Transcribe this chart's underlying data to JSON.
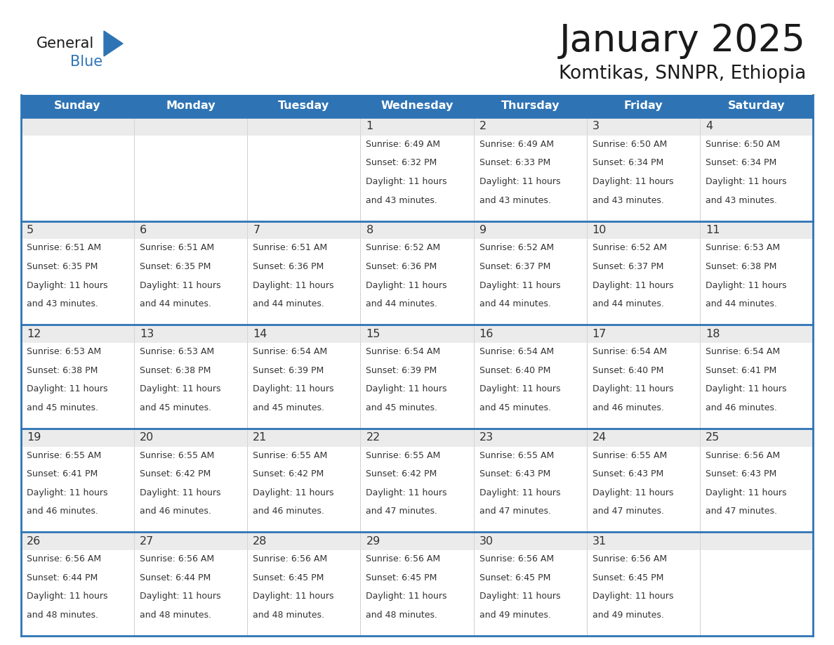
{
  "title": "January 2025",
  "subtitle": "Komtikas, SNNPR, Ethiopia",
  "days_of_week": [
    "Sunday",
    "Monday",
    "Tuesday",
    "Wednesday",
    "Thursday",
    "Friday",
    "Saturday"
  ],
  "header_bg": "#2E74B5",
  "header_text": "#FFFFFF",
  "cell_bg": "#FFFFFF",
  "cell_header_bg": "#EBEBEB",
  "border_color": "#2E74B5",
  "day_num_color": "#333333",
  "cell_text_color": "#333333",
  "title_color": "#1a1a1a",
  "logo_general_color": "#1a1a1a",
  "logo_blue_color": "#2E74B5",
  "calendar_data": [
    [
      null,
      null,
      null,
      {
        "day": 1,
        "sunrise": "6:49 AM",
        "sunset": "6:32 PM",
        "daylight_hours": 11,
        "daylight_minutes": 43
      },
      {
        "day": 2,
        "sunrise": "6:49 AM",
        "sunset": "6:33 PM",
        "daylight_hours": 11,
        "daylight_minutes": 43
      },
      {
        "day": 3,
        "sunrise": "6:50 AM",
        "sunset": "6:34 PM",
        "daylight_hours": 11,
        "daylight_minutes": 43
      },
      {
        "day": 4,
        "sunrise": "6:50 AM",
        "sunset": "6:34 PM",
        "daylight_hours": 11,
        "daylight_minutes": 43
      }
    ],
    [
      {
        "day": 5,
        "sunrise": "6:51 AM",
        "sunset": "6:35 PM",
        "daylight_hours": 11,
        "daylight_minutes": 43
      },
      {
        "day": 6,
        "sunrise": "6:51 AM",
        "sunset": "6:35 PM",
        "daylight_hours": 11,
        "daylight_minutes": 44
      },
      {
        "day": 7,
        "sunrise": "6:51 AM",
        "sunset": "6:36 PM",
        "daylight_hours": 11,
        "daylight_minutes": 44
      },
      {
        "day": 8,
        "sunrise": "6:52 AM",
        "sunset": "6:36 PM",
        "daylight_hours": 11,
        "daylight_minutes": 44
      },
      {
        "day": 9,
        "sunrise": "6:52 AM",
        "sunset": "6:37 PM",
        "daylight_hours": 11,
        "daylight_minutes": 44
      },
      {
        "day": 10,
        "sunrise": "6:52 AM",
        "sunset": "6:37 PM",
        "daylight_hours": 11,
        "daylight_minutes": 44
      },
      {
        "day": 11,
        "sunrise": "6:53 AM",
        "sunset": "6:38 PM",
        "daylight_hours": 11,
        "daylight_minutes": 44
      }
    ],
    [
      {
        "day": 12,
        "sunrise": "6:53 AM",
        "sunset": "6:38 PM",
        "daylight_hours": 11,
        "daylight_minutes": 45
      },
      {
        "day": 13,
        "sunrise": "6:53 AM",
        "sunset": "6:38 PM",
        "daylight_hours": 11,
        "daylight_minutes": 45
      },
      {
        "day": 14,
        "sunrise": "6:54 AM",
        "sunset": "6:39 PM",
        "daylight_hours": 11,
        "daylight_minutes": 45
      },
      {
        "day": 15,
        "sunrise": "6:54 AM",
        "sunset": "6:39 PM",
        "daylight_hours": 11,
        "daylight_minutes": 45
      },
      {
        "day": 16,
        "sunrise": "6:54 AM",
        "sunset": "6:40 PM",
        "daylight_hours": 11,
        "daylight_minutes": 45
      },
      {
        "day": 17,
        "sunrise": "6:54 AM",
        "sunset": "6:40 PM",
        "daylight_hours": 11,
        "daylight_minutes": 46
      },
      {
        "day": 18,
        "sunrise": "6:54 AM",
        "sunset": "6:41 PM",
        "daylight_hours": 11,
        "daylight_minutes": 46
      }
    ],
    [
      {
        "day": 19,
        "sunrise": "6:55 AM",
        "sunset": "6:41 PM",
        "daylight_hours": 11,
        "daylight_minutes": 46
      },
      {
        "day": 20,
        "sunrise": "6:55 AM",
        "sunset": "6:42 PM",
        "daylight_hours": 11,
        "daylight_minutes": 46
      },
      {
        "day": 21,
        "sunrise": "6:55 AM",
        "sunset": "6:42 PM",
        "daylight_hours": 11,
        "daylight_minutes": 46
      },
      {
        "day": 22,
        "sunrise": "6:55 AM",
        "sunset": "6:42 PM",
        "daylight_hours": 11,
        "daylight_minutes": 47
      },
      {
        "day": 23,
        "sunrise": "6:55 AM",
        "sunset": "6:43 PM",
        "daylight_hours": 11,
        "daylight_minutes": 47
      },
      {
        "day": 24,
        "sunrise": "6:55 AM",
        "sunset": "6:43 PM",
        "daylight_hours": 11,
        "daylight_minutes": 47
      },
      {
        "day": 25,
        "sunrise": "6:56 AM",
        "sunset": "6:43 PM",
        "daylight_hours": 11,
        "daylight_minutes": 47
      }
    ],
    [
      {
        "day": 26,
        "sunrise": "6:56 AM",
        "sunset": "6:44 PM",
        "daylight_hours": 11,
        "daylight_minutes": 48
      },
      {
        "day": 27,
        "sunrise": "6:56 AM",
        "sunset": "6:44 PM",
        "daylight_hours": 11,
        "daylight_minutes": 48
      },
      {
        "day": 28,
        "sunrise": "6:56 AM",
        "sunset": "6:45 PM",
        "daylight_hours": 11,
        "daylight_minutes": 48
      },
      {
        "day": 29,
        "sunrise": "6:56 AM",
        "sunset": "6:45 PM",
        "daylight_hours": 11,
        "daylight_minutes": 48
      },
      {
        "day": 30,
        "sunrise": "6:56 AM",
        "sunset": "6:45 PM",
        "daylight_hours": 11,
        "daylight_minutes": 49
      },
      {
        "day": 31,
        "sunrise": "6:56 AM",
        "sunset": "6:45 PM",
        "daylight_hours": 11,
        "daylight_minutes": 49
      },
      null
    ]
  ]
}
